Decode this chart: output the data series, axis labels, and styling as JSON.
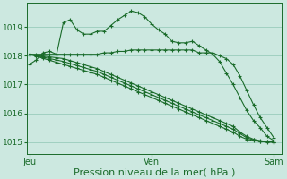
{
  "bg_color": "#cce8e0",
  "grid_color": "#99ccbb",
  "line_color": "#1a6b2a",
  "marker_color": "#1a6b2a",
  "xlabel": "Pression niveau de la mer( hPa )",
  "xlabel_fontsize": 8,
  "xtick_labels": [
    "Jeu",
    "Ven",
    "Sam"
  ],
  "xtick_positions": [
    0,
    24,
    48
  ],
  "ytick_values": [
    1015,
    1016,
    1017,
    1018,
    1019
  ],
  "ylim": [
    1014.6,
    1019.85
  ],
  "xlim": [
    -0.5,
    49.5
  ],
  "series": [
    [
      1017.7,
      1017.85,
      1018.1,
      1018.15,
      1018.05,
      1019.15,
      1019.25,
      1018.9,
      1018.75,
      1018.75,
      1018.85,
      1018.85,
      1019.05,
      1019.25,
      1019.4,
      1019.55,
      1019.5,
      1019.35,
      1019.1,
      1018.9,
      1018.75,
      1018.5,
      1018.45,
      1018.45,
      1018.5,
      1018.35,
      1018.2,
      1018.05,
      1017.8,
      1017.4,
      1017.0,
      1016.55,
      1016.1,
      1015.75,
      1015.5,
      1015.2,
      1015.05
    ],
    [
      1018.05,
      1018.05,
      1018.05,
      1018.05,
      1018.05,
      1018.05,
      1018.05,
      1018.05,
      1018.05,
      1018.05,
      1018.05,
      1018.1,
      1018.1,
      1018.15,
      1018.15,
      1018.2,
      1018.2,
      1018.2,
      1018.2,
      1018.2,
      1018.2,
      1018.2,
      1018.2,
      1018.2,
      1018.2,
      1018.1,
      1018.1,
      1018.1,
      1018.0,
      1017.9,
      1017.7,
      1017.3,
      1016.8,
      1016.3,
      1015.85,
      1015.5,
      1015.15
    ],
    [
      1018.05,
      1018.02,
      1017.99,
      1017.96,
      1017.93,
      1017.9,
      1017.83,
      1017.76,
      1017.69,
      1017.62,
      1017.55,
      1017.45,
      1017.35,
      1017.25,
      1017.15,
      1017.05,
      1016.95,
      1016.85,
      1016.75,
      1016.65,
      1016.55,
      1016.45,
      1016.35,
      1016.25,
      1016.15,
      1016.05,
      1015.95,
      1015.85,
      1015.75,
      1015.65,
      1015.55,
      1015.35,
      1015.2,
      1015.1,
      1015.05,
      1015.02,
      1015.0
    ],
    [
      1018.05,
      1018.0,
      1017.95,
      1017.9,
      1017.85,
      1017.8,
      1017.73,
      1017.66,
      1017.59,
      1017.52,
      1017.45,
      1017.35,
      1017.25,
      1017.15,
      1017.05,
      1016.95,
      1016.85,
      1016.75,
      1016.65,
      1016.55,
      1016.45,
      1016.35,
      1016.25,
      1016.15,
      1016.05,
      1015.95,
      1015.85,
      1015.75,
      1015.65,
      1015.55,
      1015.45,
      1015.3,
      1015.15,
      1015.08,
      1015.03,
      1015.01,
      1015.0
    ],
    [
      1018.05,
      1017.98,
      1017.91,
      1017.84,
      1017.77,
      1017.7,
      1017.63,
      1017.56,
      1017.49,
      1017.42,
      1017.35,
      1017.25,
      1017.15,
      1017.05,
      1016.95,
      1016.85,
      1016.75,
      1016.65,
      1016.55,
      1016.45,
      1016.35,
      1016.25,
      1016.15,
      1016.05,
      1015.95,
      1015.85,
      1015.75,
      1015.65,
      1015.55,
      1015.45,
      1015.35,
      1015.2,
      1015.1,
      1015.05,
      1015.02,
      1015.0,
      1015.0
    ]
  ],
  "vline_positions": [
    0,
    24,
    48
  ],
  "marker": "+",
  "marker_size": 3.5,
  "linewidth": 0.8
}
